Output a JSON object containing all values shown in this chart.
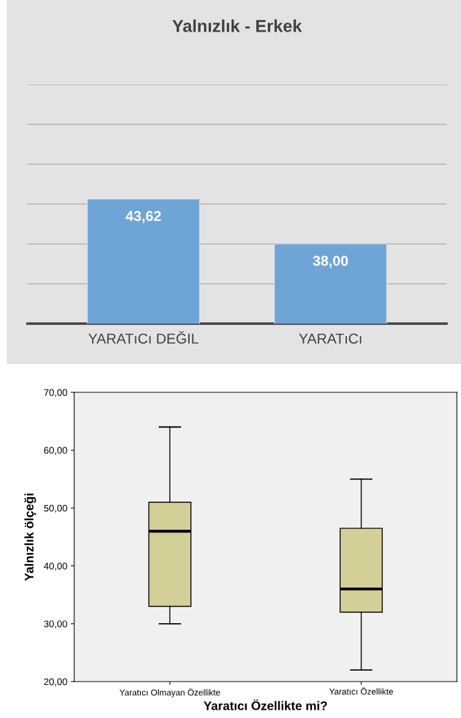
{
  "chart_data": [
    {
      "type": "bar",
      "title": "Yalnızlık - Erkek",
      "categories": [
        "YARATıCı DEĞIL",
        "YARATıCı"
      ],
      "values": [
        43.62,
        38.0
      ],
      "value_labels": [
        "43,62",
        "38,00"
      ],
      "color": "#6fa4d7",
      "ylim": [
        28,
        58
      ],
      "yticks": [
        {
          "value": 33,
          "label": null
        },
        {
          "value": 38,
          "label": null
        },
        {
          "value": 43,
          "label": null
        },
        {
          "value": 48,
          "label": null
        },
        {
          "value": 53,
          "label": null
        },
        {
          "value": 58,
          "label": null
        }
      ],
      "grid": "y",
      "tick_labels": "x"
    },
    {
      "type": "box",
      "xlabel": "Yaratıcı Özellikte mi?",
      "ylabel": "Yalnızlık ölçeği",
      "categories": [
        "Yaratıcı Olmayan Özellikte",
        "Yaratıcı Özellikte"
      ],
      "color": "#d4cf97",
      "boxes": [
        {
          "low": 30,
          "q1": 33,
          "median": 46,
          "q3": 51,
          "high": 64
        },
        {
          "low": 22,
          "q1": 32,
          "median": 36,
          "q3": 46.5,
          "high": 55
        }
      ],
      "ylim": [
        20,
        70
      ],
      "yticks": [
        {
          "value": 20,
          "label": "20,00"
        },
        {
          "value": 30,
          "label": "30,00"
        },
        {
          "value": 40,
          "label": "40,00"
        },
        {
          "value": 50,
          "label": "50,00"
        },
        {
          "value": 60,
          "label": "60,00"
        },
        {
          "value": 70,
          "label": "70,00"
        }
      ]
    }
  ]
}
